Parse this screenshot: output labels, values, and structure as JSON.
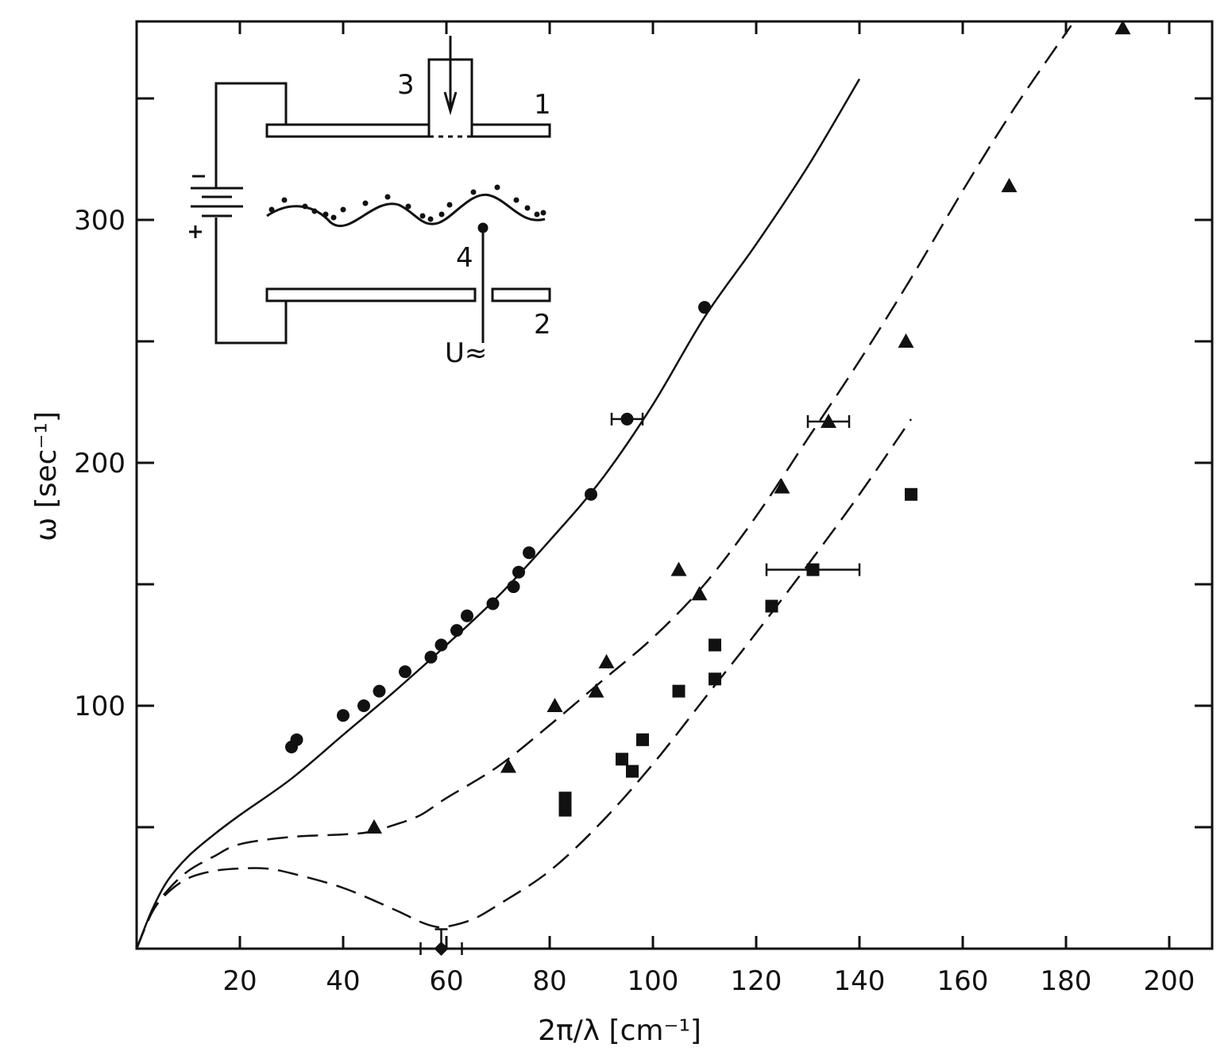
{
  "chart_data": {
    "type": "scatter",
    "title": "",
    "xlabel": "2π/λ  [cm⁻¹]",
    "ylabel": "ω  [sec⁻¹]",
    "xlim": [
      0,
      212
    ],
    "ylim": [
      0,
      385
    ],
    "x_ticks": [
      20,
      40,
      60,
      80,
      100,
      120,
      140,
      160,
      180,
      200
    ],
    "x_tick_labels": [
      "20",
      "40",
      "60",
      "80",
      "100",
      "120",
      "140",
      "160",
      "180",
      "200"
    ],
    "y_ticks": [
      100,
      200,
      300
    ],
    "y_tick_labels": [
      "100",
      "200",
      "300"
    ],
    "y_minor_ticks": [
      50,
      150,
      250,
      350
    ],
    "grid": false,
    "series": [
      {
        "marker": "circle",
        "points": [
          [
            30,
            83
          ],
          [
            31,
            86
          ],
          [
            40,
            96
          ],
          [
            44,
            100
          ],
          [
            47,
            106
          ],
          [
            52,
            114
          ],
          [
            57,
            120
          ],
          [
            59,
            125
          ],
          [
            62,
            131
          ],
          [
            64,
            137
          ],
          [
            69,
            142
          ],
          [
            73,
            149
          ],
          [
            74,
            155
          ],
          [
            76,
            163
          ],
          [
            88,
            187
          ],
          [
            95,
            218
          ],
          [
            110,
            264
          ]
        ],
        "error_bars_x": [
          {
            "x": 95,
            "y": 218,
            "xerr": 3
          }
        ]
      },
      {
        "marker": "triangle",
        "points": [
          [
            46,
            50
          ],
          [
            72,
            75
          ],
          [
            81,
            100
          ],
          [
            89,
            106
          ],
          [
            91,
            118
          ],
          [
            105,
            156
          ],
          [
            109,
            146
          ],
          [
            125,
            190
          ],
          [
            134,
            217
          ],
          [
            149,
            250
          ],
          [
            169,
            314
          ],
          [
            191,
            379
          ]
        ],
        "error_bars_x": [
          {
            "x": 134,
            "y": 217,
            "xerr": 4
          }
        ]
      },
      {
        "marker": "square",
        "points": [
          [
            83,
            57
          ],
          [
            83,
            62
          ],
          [
            94,
            78
          ],
          [
            96,
            73
          ],
          [
            98,
            86
          ],
          [
            105,
            106
          ],
          [
            112,
            111
          ],
          [
            112,
            125
          ],
          [
            123,
            141
          ],
          [
            131,
            156
          ],
          [
            150,
            187
          ]
        ],
        "error_bars_x": [
          {
            "x": 131,
            "y": 156,
            "xerr": 9
          }
        ]
      },
      {
        "marker": "diamond",
        "points": [
          [
            59,
            0
          ]
        ],
        "error_bars_x": [
          {
            "x": 59,
            "y": 0,
            "xerr": 4
          }
        ],
        "error_bars_y": [
          {
            "x": 59,
            "y": 0,
            "yerr": 8
          }
        ]
      }
    ],
    "curves": [
      {
        "style": "solid",
        "points": [
          [
            0,
            0
          ],
          [
            3,
            16
          ],
          [
            6,
            28
          ],
          [
            10,
            38
          ],
          [
            15,
            47
          ],
          [
            20,
            55
          ],
          [
            30,
            70
          ],
          [
            40,
            88
          ],
          [
            50,
            106
          ],
          [
            60,
            125
          ],
          [
            70,
            145
          ],
          [
            80,
            168
          ],
          [
            90,
            193
          ],
          [
            100,
            224
          ],
          [
            110,
            260
          ],
          [
            120,
            290
          ],
          [
            130,
            322
          ],
          [
            140,
            358
          ]
        ]
      },
      {
        "style": "dashed",
        "points": [
          [
            0,
            0
          ],
          [
            3,
            15
          ],
          [
            6,
            24
          ],
          [
            10,
            32
          ],
          [
            15,
            38
          ],
          [
            20,
            43
          ],
          [
            30,
            46
          ],
          [
            40,
            47
          ],
          [
            45,
            48
          ],
          [
            50,
            51
          ],
          [
            55,
            55
          ],
          [
            60,
            62
          ],
          [
            70,
            75
          ],
          [
            80,
            92
          ],
          [
            90,
            110
          ],
          [
            100,
            128
          ],
          [
            110,
            150
          ],
          [
            120,
            178
          ],
          [
            130,
            210
          ],
          [
            140,
            242
          ],
          [
            150,
            276
          ],
          [
            160,
            312
          ],
          [
            170,
            346
          ],
          [
            181,
            380
          ]
        ]
      },
      {
        "style": "dashed",
        "points": [
          [
            0,
            0
          ],
          [
            3,
            15
          ],
          [
            6,
            23
          ],
          [
            10,
            29
          ],
          [
            15,
            32
          ],
          [
            20,
            33
          ],
          [
            25,
            33
          ],
          [
            30,
            31
          ],
          [
            40,
            25
          ],
          [
            50,
            16
          ],
          [
            55,
            11
          ],
          [
            58,
            9
          ],
          [
            60,
            9
          ],
          [
            65,
            12
          ],
          [
            70,
            18
          ],
          [
            80,
            32
          ],
          [
            90,
            52
          ],
          [
            100,
            76
          ],
          [
            110,
            103
          ],
          [
            120,
            130
          ],
          [
            130,
            158
          ],
          [
            140,
            187
          ],
          [
            150,
            218
          ]
        ]
      }
    ],
    "inset_labels": [
      "1",
      "2",
      "3",
      "4",
      "U≈"
    ]
  }
}
